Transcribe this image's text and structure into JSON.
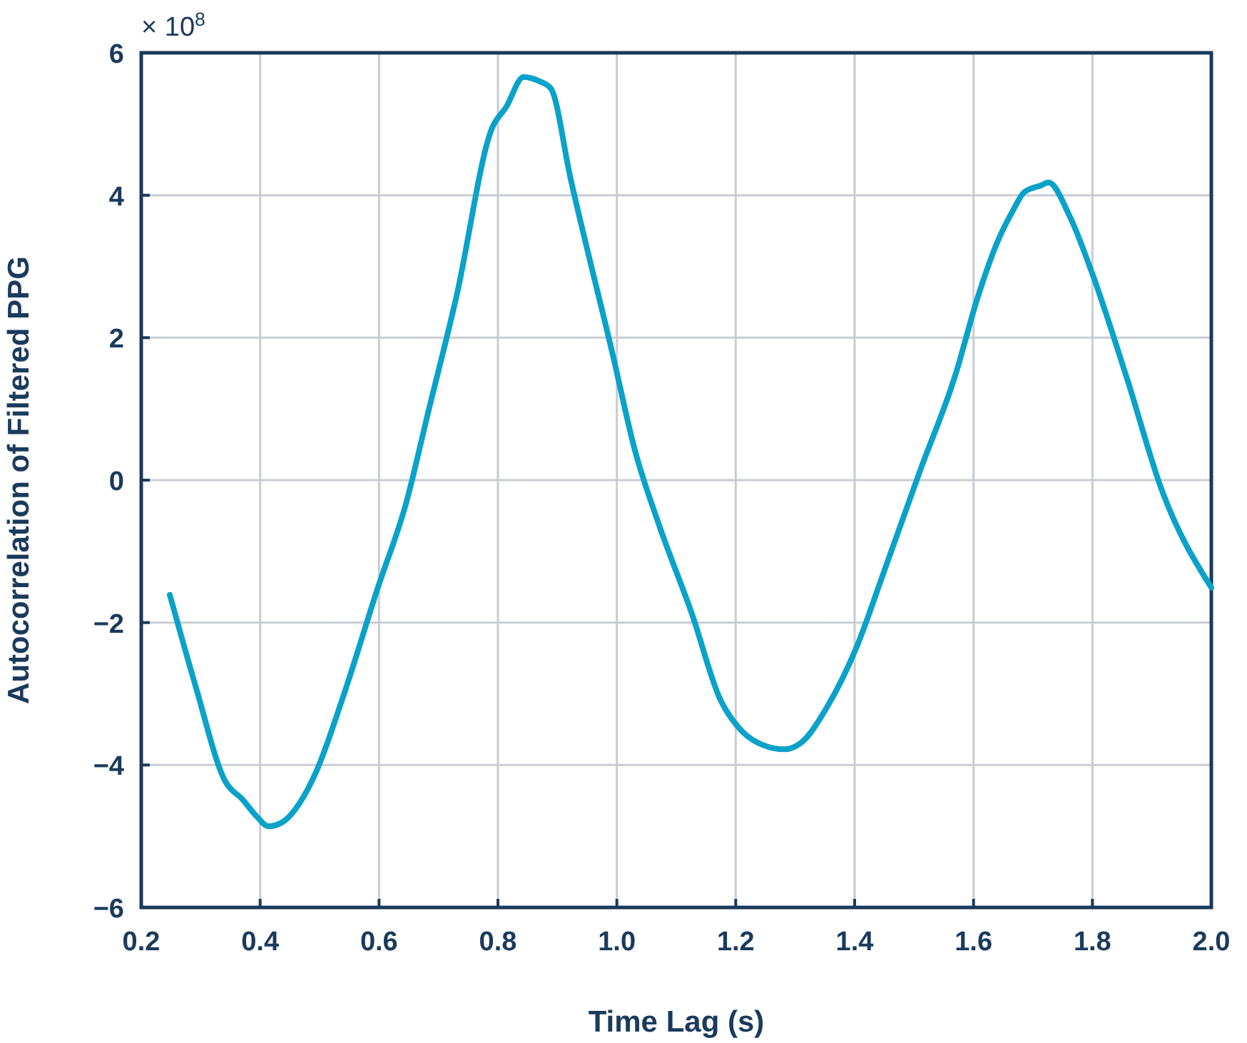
{
  "chart_data": {
    "type": "line",
    "xlabel": "Time Lag (s)",
    "ylabel": "Autocorrelation of Filtered PPG",
    "annotations": [
      "× 10$^{8}$"
    ],
    "xlim": [
      0.2,
      2.0
    ],
    "xticks": [
      {
        "value": 0.2,
        "label": "0.2"
      },
      {
        "value": 0.4,
        "label": "0.4"
      },
      {
        "value": 0.6,
        "label": "0.6"
      },
      {
        "value": 0.8,
        "label": "0.8"
      },
      {
        "value": 1.0,
        "label": "1.0"
      },
      {
        "value": 1.2,
        "label": "1.2"
      },
      {
        "value": 1.4,
        "label": "1.4"
      },
      {
        "value": 1.6,
        "label": "1.6"
      },
      {
        "value": 1.8,
        "label": "1.8"
      },
      {
        "value": 2.0,
        "label": "2.0"
      }
    ],
    "ylim": [
      -6,
      6
    ],
    "yticks": [
      {
        "value": -6,
        "label": "−6"
      },
      {
        "value": -4,
        "label": "−4"
      },
      {
        "value": -2,
        "label": "−2"
      },
      0,
      2,
      4,
      6
    ],
    "grid": true,
    "marker": "none",
    "line_style": "solid",
    "series": [
      {
        "color": "#0aa2c9",
        "x": [
          0.248,
          0.291,
          0.342,
          0.37,
          0.394,
          0.414,
          0.438,
          0.466,
          0.495,
          0.538,
          0.598,
          0.646,
          0.682,
          0.73,
          0.79,
          0.814,
          0.843,
          0.87,
          0.889,
          0.922,
          0.994,
          1.03,
          1.071,
          1.126,
          1.174,
          1.21,
          1.246,
          1.282,
          1.311,
          1.354,
          1.402,
          1.45,
          1.51,
          1.57,
          1.606,
          1.642,
          1.666,
          1.685,
          1.714,
          1.726,
          1.762,
          1.798,
          1.858,
          1.918,
          2.0
        ],
        "values": [
          -1.61,
          -2.88,
          -4.24,
          -4.48,
          -4.72,
          -4.86,
          -4.8,
          -4.54,
          -4.08,
          -3.08,
          -1.51,
          -0.31,
          0.93,
          2.57,
          4.94,
          5.24,
          5.66,
          5.6,
          5.5,
          4.24,
          1.73,
          0.43,
          -0.63,
          -1.87,
          -3.08,
          -3.52,
          -3.72,
          -3.78,
          -3.68,
          -3.18,
          -2.37,
          -1.27,
          0.13,
          1.49,
          2.54,
          3.38,
          3.78,
          4.04,
          4.14,
          4.18,
          3.7,
          2.94,
          1.43,
          -0.17,
          -1.51
        ]
      }
    ]
  }
}
